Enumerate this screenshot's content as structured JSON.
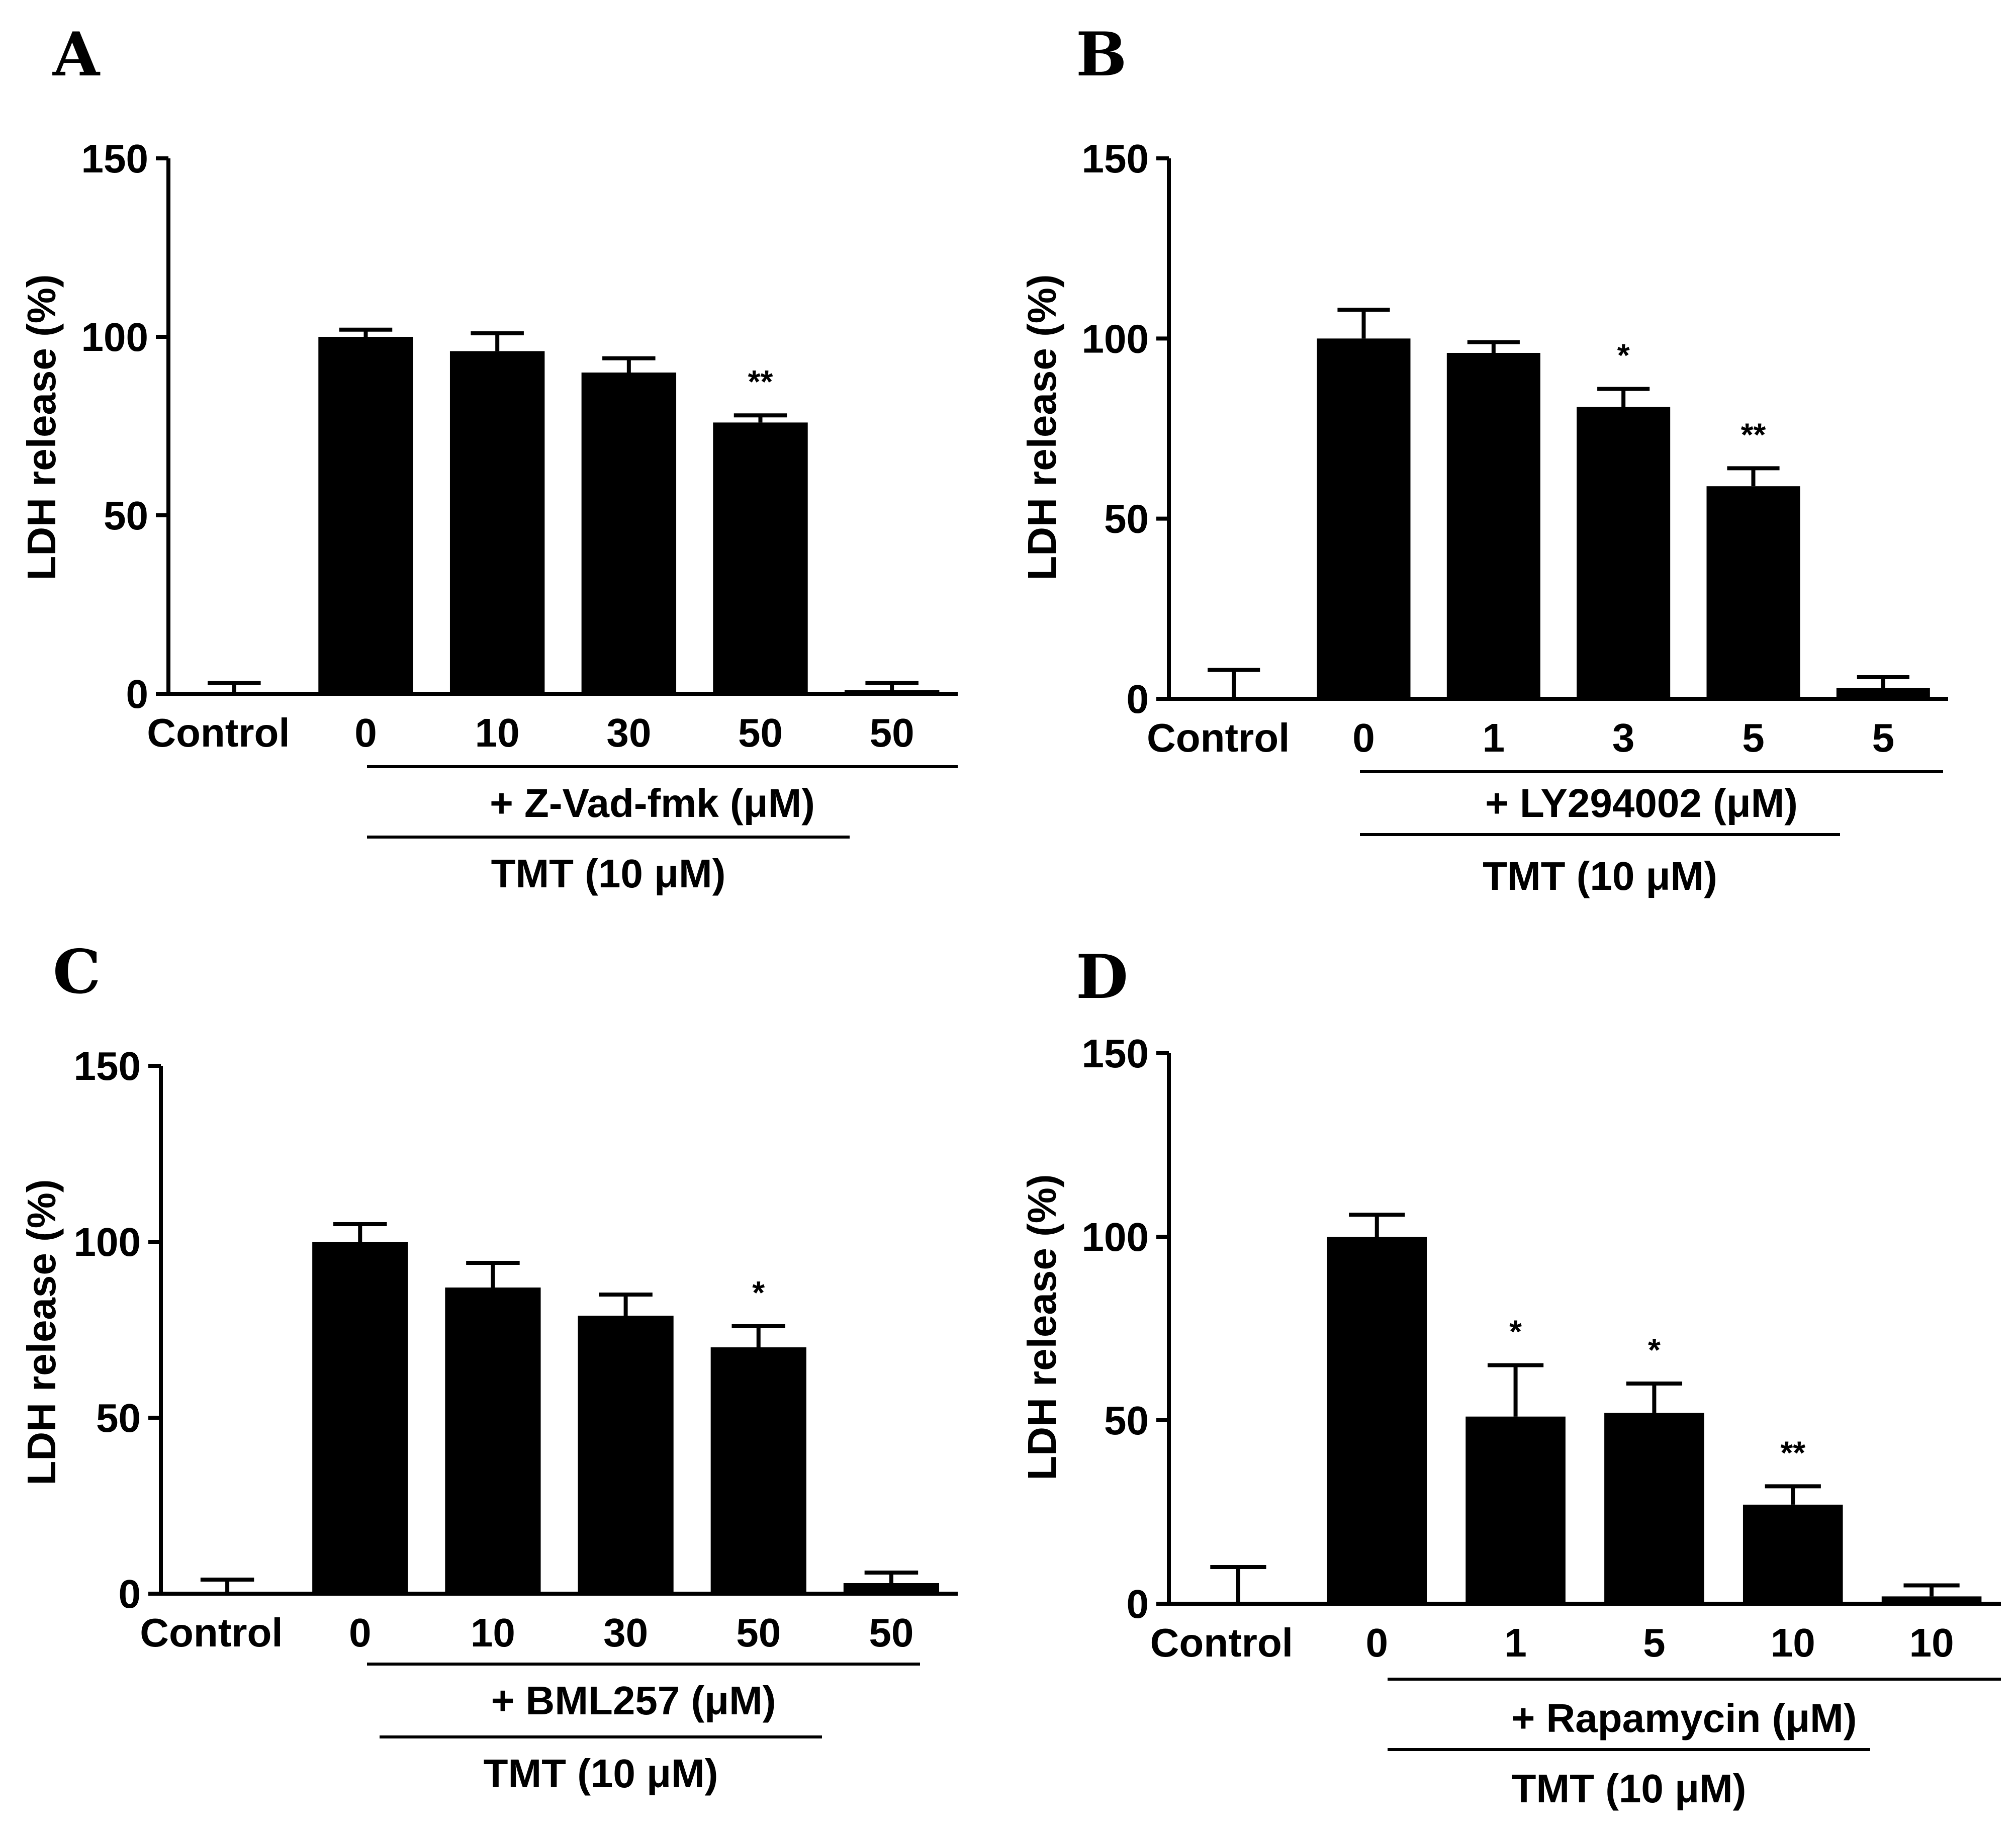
{
  "chart_data": [
    {
      "panel": "A",
      "type": "bar",
      "ylabel": "LDH release (%)",
      "ylim": [
        0,
        150
      ],
      "yticks": [
        "0",
        "50",
        "100",
        "150"
      ],
      "categories": [
        "Control",
        "0",
        "10",
        "30",
        "50",
        "50"
      ],
      "values": [
        0,
        100,
        96,
        90,
        76,
        1
      ],
      "errors": [
        3,
        2,
        5,
        4,
        2,
        2
      ],
      "significance": [
        "",
        "",
        "",
        "",
        "**",
        ""
      ],
      "inhibitor_label": "+ Z-Vad-fmk (μM)",
      "treatment_label": "TMT (10 μM)"
    },
    {
      "panel": "B",
      "type": "bar",
      "ylabel": "LDH release (%)",
      "ylim": [
        0,
        150
      ],
      "yticks": [
        "0",
        "50",
        "100",
        "150"
      ],
      "categories": [
        "Control",
        "0",
        "1",
        "3",
        "5",
        "5"
      ],
      "values": [
        0,
        100,
        96,
        81,
        59,
        3
      ],
      "errors": [
        8,
        8,
        3,
        5,
        5,
        3
      ],
      "significance": [
        "",
        "",
        "",
        "*",
        "**",
        ""
      ],
      "inhibitor_label": "+ LY294002 (μM)",
      "treatment_label": "TMT (10 μM)"
    },
    {
      "panel": "C",
      "type": "bar",
      "ylabel": "LDH release (%)",
      "ylim": [
        0,
        150
      ],
      "yticks": [
        "0",
        "50",
        "100",
        "150"
      ],
      "categories": [
        "Control",
        "0",
        "10",
        "30",
        "50",
        "50"
      ],
      "values": [
        0,
        100,
        87,
        79,
        70,
        3
      ],
      "errors": [
        4,
        5,
        7,
        6,
        6,
        3
      ],
      "significance": [
        "",
        "",
        "",
        "",
        "*",
        ""
      ],
      "inhibitor_label": "+ BML257 (μM)",
      "treatment_label": "TMT (10 μM)"
    },
    {
      "panel": "D",
      "type": "bar",
      "ylabel": "LDH release (%)",
      "ylim": [
        0,
        150
      ],
      "yticks": [
        "0",
        "50",
        "100",
        "150"
      ],
      "categories": [
        "Control",
        "0",
        "1",
        "5",
        "10",
        "10"
      ],
      "values": [
        0,
        100,
        51,
        52,
        27,
        2
      ],
      "errors": [
        10,
        6,
        14,
        8,
        5,
        3
      ],
      "significance": [
        "",
        "",
        "*",
        "*",
        "**",
        ""
      ],
      "inhibitor_label": "+ Rapamycin (μM)",
      "treatment_label": "TMT (10 μM)"
    }
  ]
}
